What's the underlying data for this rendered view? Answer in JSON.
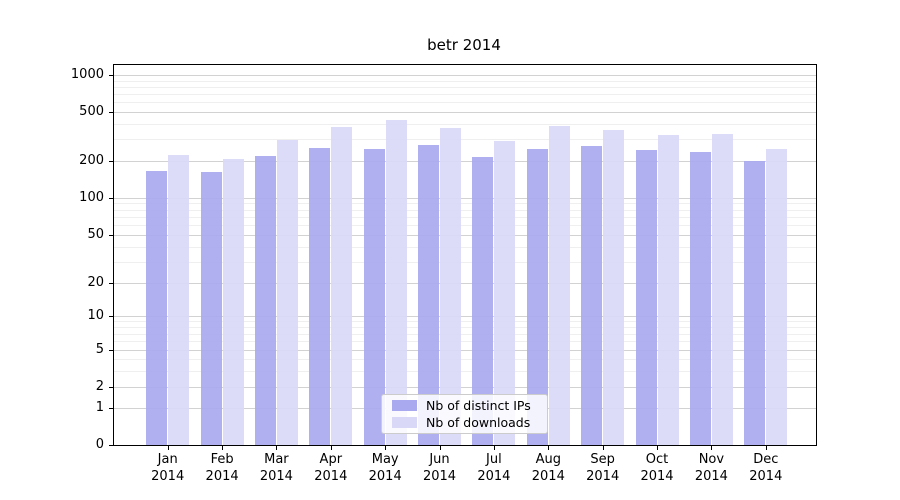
{
  "chart_data": {
    "type": "bar",
    "title": "betr 2014",
    "categories": [
      "Jan 2014",
      "Feb 2014",
      "Mar 2014",
      "Apr 2014",
      "May 2014",
      "Jun 2014",
      "Jul 2014",
      "Aug 2014",
      "Sep 2014",
      "Oct 2014",
      "Nov 2014",
      "Dec 2014"
    ],
    "series": [
      {
        "name": "Nb of distinct IPs",
        "color": "#a9a9ef",
        "values": [
          167,
          163,
          220,
          253,
          251,
          272,
          215,
          250,
          265,
          245,
          239,
          200
        ]
      },
      {
        "name": "Nb of downloads",
        "color": "#d9d9f7",
        "values": [
          226,
          206,
          295,
          377,
          430,
          370,
          290,
          382,
          358,
          326,
          332,
          250
        ]
      }
    ],
    "xlabel": "",
    "ylabel": "",
    "y_ticks": [
      0,
      1,
      2,
      5,
      10,
      20,
      50,
      100,
      200,
      500,
      1000
    ],
    "y_scale": "log-like with 0 baseline",
    "ylim": [
      0,
      1400
    ],
    "grid": true,
    "legend_position": "inside lower center"
  }
}
